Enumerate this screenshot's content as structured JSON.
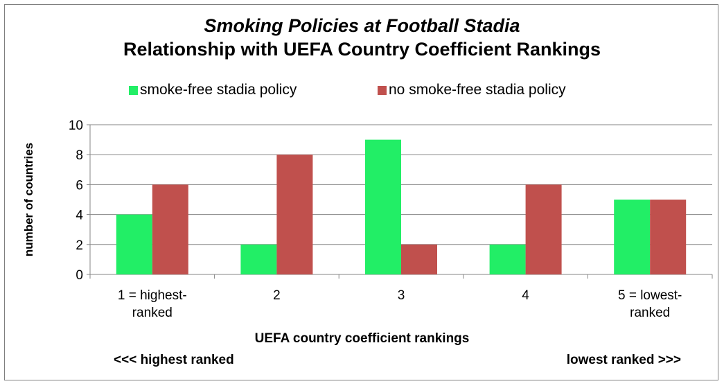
{
  "chart_data": {
    "type": "bar",
    "title": "Smoking Policies at Football Stadia",
    "subtitle": "Relationship with UEFA Country Coefficient Rankings",
    "categories": [
      "1 = highest-ranked",
      "2",
      "3",
      "4",
      "5 = lowest-ranked"
    ],
    "category_lines": [
      [
        "1 = highest-",
        "ranked"
      ],
      [
        "2"
      ],
      [
        "3"
      ],
      [
        "4"
      ],
      [
        "5 = lowest-",
        "ranked"
      ]
    ],
    "series": [
      {
        "name": "smoke-free stadia policy",
        "values": [
          4,
          2,
          9,
          2,
          5
        ],
        "color": "#22ee66"
      },
      {
        "name": "no smoke-free stadia policy",
        "values": [
          6,
          8,
          2,
          6,
          5
        ],
        "color": "#c0504d"
      }
    ],
    "ylabel": "number of countries",
    "xlabel": "UEFA country  coefficient  rankings",
    "x_left_note": "<<< highest ranked",
    "x_right_note": "lowest ranked  >>>",
    "ylim": [
      0,
      10
    ],
    "yticks": [
      0,
      2,
      4,
      6,
      8,
      10
    ],
    "grid": true,
    "legend_position": "top"
  }
}
